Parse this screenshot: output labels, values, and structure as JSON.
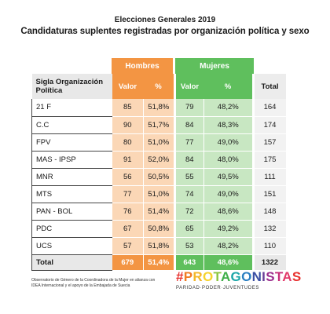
{
  "header": {
    "supertitle": "Elecciones Generales 2019",
    "title": "Candidaturas suplentes registradas por organización política y sexo"
  },
  "groups": {
    "hombres": "Hombres",
    "mujeres": "Mujeres"
  },
  "columns": {
    "sigla": "Sigla Organización Política",
    "valor_h": "Valor",
    "pct_h": "%",
    "valor_m": "Valor",
    "pct_m": "%",
    "total": "Total"
  },
  "rows": [
    {
      "sigla": "21 F",
      "h_valor": "85",
      "h_pct": "51,8%",
      "m_valor": "79",
      "m_pct": "48,2%",
      "total": "164"
    },
    {
      "sigla": "C.C",
      "h_valor": "90",
      "h_pct": "51,7%",
      "m_valor": "84",
      "m_pct": "48,3%",
      "total": "174"
    },
    {
      "sigla": "FPV",
      "h_valor": "80",
      "h_pct": "51,0%",
      "m_valor": "77",
      "m_pct": "49,0%",
      "total": "157"
    },
    {
      "sigla": "MAS - IPSP",
      "h_valor": "91",
      "h_pct": "52,0%",
      "m_valor": "84",
      "m_pct": "48,0%",
      "total": "175"
    },
    {
      "sigla": "MNR",
      "h_valor": "56",
      "h_pct": "50,5%",
      "m_valor": "55",
      "m_pct": "49,5%",
      "total": "111"
    },
    {
      "sigla": "MTS",
      "h_valor": "77",
      "h_pct": "51,0%",
      "m_valor": "74",
      "m_pct": "49,0%",
      "total": "151"
    },
    {
      "sigla": "PAN - BOL",
      "h_valor": "76",
      "h_pct": "51,4%",
      "m_valor": "72",
      "m_pct": "48,6%",
      "total": "148"
    },
    {
      "sigla": "PDC",
      "h_valor": "67",
      "h_pct": "50,8%",
      "m_valor": "65",
      "m_pct": "49,2%",
      "total": "132"
    },
    {
      "sigla": "UCS",
      "h_valor": "57",
      "h_pct": "51,8%",
      "m_valor": "53",
      "m_pct": "48,2%",
      "total": "110"
    }
  ],
  "total_row": {
    "sigla": "Total",
    "h_valor": "679",
    "h_pct": "51,4%",
    "m_valor": "643",
    "m_pct": "48,6%",
    "total": "1322"
  },
  "footer": {
    "credit": "Observatorio de Género de la Coordinadora de la Mujer en alianza con IDEA Internacional y el apoyo de la Embajada de Suecia",
    "brand": "#PROTAGONISTAS",
    "tagline": "PARIDAD·PODER·JUVENTUDES"
  },
  "colors": {
    "hombres": "#f39543",
    "hombres_light": "#fbd7b6",
    "mujeres": "#5fbf5d",
    "mujeres_light": "#c8e7c2",
    "brand_letters": [
      "#e8312e",
      "#f07c22",
      "#f4b728",
      "#f6d32c",
      "#8cc63f",
      "#3fae49",
      "#1ba6a8",
      "#2a7fc1",
      "#3a4fa3",
      "#6a3f97",
      "#9b2f8f",
      "#c62f7b",
      "#e23a6a",
      "#e8312e"
    ]
  }
}
